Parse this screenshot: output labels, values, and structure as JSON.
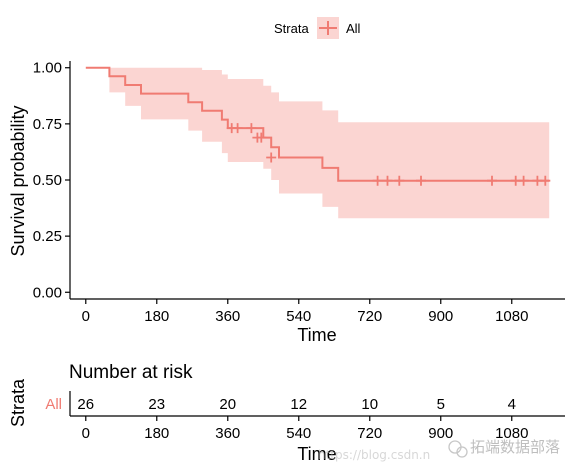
{
  "legend": {
    "title": "Strata",
    "entries": [
      {
        "label": "All",
        "color": "#f07b72"
      }
    ]
  },
  "chart_data": {
    "type": "line",
    "subtype": "kaplan-meier",
    "xlabel": "Time",
    "ylabel": "Survival probability",
    "xlim": [
      -40,
      1215
    ],
    "ylim": [
      -0.03,
      1.03
    ],
    "x_ticks": [
      0,
      180,
      360,
      540,
      720,
      900,
      1080
    ],
    "y_ticks": [
      0.0,
      0.25,
      0.5,
      0.75,
      1.0
    ],
    "y_tick_labels": [
      "0.00",
      "0.25",
      "0.50",
      "0.75",
      "1.00"
    ],
    "legend_position": "top",
    "grid": false,
    "series": [
      {
        "name": "All",
        "color": "#f07b72",
        "ci_color": "#fbd5d2",
        "steps": [
          {
            "x": 0,
            "y": 1.0,
            "lower": 1.0,
            "upper": 1.0
          },
          {
            "x": 60,
            "y": 0.962,
            "lower": 0.89,
            "upper": 1.0
          },
          {
            "x": 100,
            "y": 0.923,
            "lower": 0.83,
            "upper": 1.0
          },
          {
            "x": 140,
            "y": 0.885,
            "lower": 0.77,
            "upper": 1.0
          },
          {
            "x": 260,
            "y": 0.846,
            "lower": 0.72,
            "upper": 1.0
          },
          {
            "x": 295,
            "y": 0.808,
            "lower": 0.67,
            "upper": 0.99
          },
          {
            "x": 345,
            "y": 0.769,
            "lower": 0.62,
            "upper": 0.97
          },
          {
            "x": 360,
            "y": 0.731,
            "lower": 0.58,
            "upper": 0.95
          },
          {
            "x": 450,
            "y": 0.689,
            "lower": 0.55,
            "upper": 0.92
          },
          {
            "x": 470,
            "y": 0.646,
            "lower": 0.5,
            "upper": 0.89
          },
          {
            "x": 490,
            "y": 0.6,
            "lower": 0.44,
            "upper": 0.85
          },
          {
            "x": 600,
            "y": 0.554,
            "lower": 0.38,
            "upper": 0.81
          },
          {
            "x": 640,
            "y": 0.497,
            "lower": 0.33,
            "upper": 0.757
          }
        ],
        "end_x": 1175,
        "censored": [
          {
            "x": 370,
            "y": 0.731
          },
          {
            "x": 385,
            "y": 0.731
          },
          {
            "x": 420,
            "y": 0.731
          },
          {
            "x": 435,
            "y": 0.689
          },
          {
            "x": 445,
            "y": 0.689
          },
          {
            "x": 470,
            "y": 0.6
          },
          {
            "x": 740,
            "y": 0.497
          },
          {
            "x": 765,
            "y": 0.497
          },
          {
            "x": 795,
            "y": 0.497
          },
          {
            "x": 850,
            "y": 0.497
          },
          {
            "x": 1030,
            "y": 0.497
          },
          {
            "x": 1090,
            "y": 0.497
          },
          {
            "x": 1110,
            "y": 0.497
          },
          {
            "x": 1145,
            "y": 0.497
          },
          {
            "x": 1165,
            "y": 0.497
          }
        ]
      }
    ]
  },
  "risk_table": {
    "title": "Number at risk",
    "ylabel": "Strata",
    "xlabel": "Time",
    "stratum": "All",
    "stratum_color": "#f07b72",
    "times": [
      0,
      180,
      360,
      540,
      720,
      900,
      1080
    ],
    "counts": [
      26,
      23,
      20,
      12,
      10,
      5,
      4
    ]
  },
  "watermark": {
    "url": "https://blog.csdn.n",
    "brand": "拓端数据部落"
  }
}
